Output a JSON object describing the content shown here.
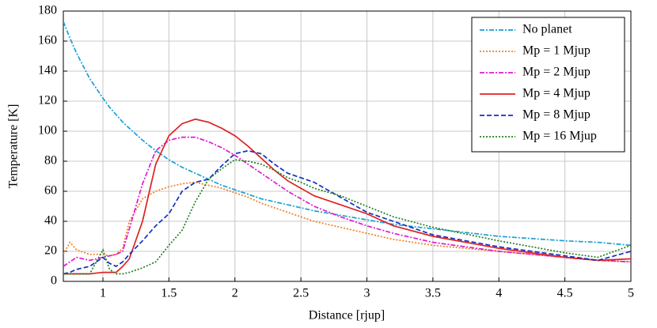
{
  "chart_data": {
    "type": "line",
    "xlabel": "Distance [rjup]",
    "ylabel": "Temperature [K]",
    "x": [
      0.7,
      0.75,
      0.8,
      0.9,
      1.0,
      1.05,
      1.1,
      1.15,
      1.2,
      1.3,
      1.4,
      1.5,
      1.6,
      1.7,
      1.8,
      1.9,
      2.0,
      2.1,
      2.2,
      2.3,
      2.4,
      2.5,
      2.6,
      2.8,
      3.0,
      3.2,
      3.5,
      4.0,
      4.5,
      4.75,
      5.0
    ],
    "series": [
      {
        "name": "No planet",
        "color": "#1a9fd6",
        "style": "dashdot",
        "values": [
          173,
          162,
          152,
          135,
          122,
          116,
          111,
          106,
          102,
          94,
          87,
          81,
          76,
          72,
          68,
          64,
          61,
          58,
          55,
          53,
          51,
          49,
          47,
          44,
          41,
          38,
          35,
          30,
          27,
          26,
          24
        ]
      },
      {
        "name": "Mp = 1 Mjup",
        "color": "#f08020",
        "style": "dotted",
        "values": [
          18,
          26,
          21,
          18,
          18,
          17,
          18,
          22,
          40,
          55,
          60,
          63,
          65,
          66,
          64,
          62,
          59,
          56,
          52,
          49,
          46,
          43,
          40,
          36,
          32,
          28,
          24,
          20,
          16,
          14,
          13
        ]
      },
      {
        "name": "Mp = 2 Mjup",
        "color": "#e01ad0",
        "style": "dashdot",
        "values": [
          10,
          13,
          16,
          14,
          16,
          17,
          18,
          20,
          35,
          65,
          87,
          94,
          96,
          96,
          93,
          89,
          84,
          78,
          72,
          66,
          60,
          55,
          50,
          43,
          37,
          32,
          26,
          20,
          16,
          14,
          13
        ]
      },
      {
        "name": "Mp = 4 Mjup",
        "color": "#e02020",
        "style": "solid",
        "values": [
          5,
          5,
          5,
          5,
          6,
          6,
          6,
          10,
          15,
          40,
          78,
          97,
          105,
          108,
          106,
          102,
          97,
          90,
          82,
          74,
          67,
          62,
          57,
          51,
          45,
          37,
          30,
          22,
          16,
          14,
          15
        ]
      },
      {
        "name": "Mp = 8 Mjup",
        "color": "#1030c0",
        "style": "dashed",
        "values": [
          5,
          6,
          8,
          10,
          16,
          12,
          10,
          13,
          18,
          27,
          37,
          45,
          60,
          66,
          68,
          77,
          85,
          87,
          85,
          78,
          72,
          69,
          66,
          56,
          46,
          40,
          31,
          23,
          17,
          14,
          20
        ]
      },
      {
        "name": "Mp = 16 Mjup",
        "color": "#208020",
        "style": "dotted",
        "values": [
          5,
          5,
          5,
          5,
          21,
          8,
          5,
          5,
          6,
          9,
          13,
          24,
          34,
          53,
          68,
          75,
          81,
          80,
          78,
          74,
          69,
          66,
          62,
          57,
          50,
          43,
          36,
          27,
          19,
          16,
          24
        ]
      }
    ],
    "xlim": [
      0.7,
      5
    ],
    "ylim": [
      0,
      180
    ],
    "xticks": [
      1,
      1.5,
      2,
      2.5,
      3,
      3.5,
      4,
      4.5,
      5
    ],
    "yticks": [
      0,
      20,
      40,
      60,
      80,
      100,
      120,
      140,
      160,
      180
    ],
    "grid": true,
    "legend": "upper right"
  }
}
